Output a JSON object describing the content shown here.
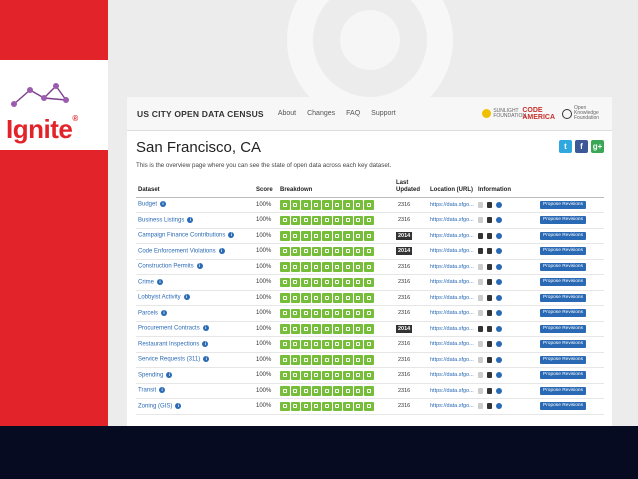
{
  "slide": {
    "logo_text": "Ignite"
  },
  "census": {
    "brand": "US CITY OPEN DATA CENSUS",
    "nav": [
      "About",
      "Changes",
      "FAQ",
      "Support"
    ],
    "partners": {
      "sunlight": "SUNLIGHT FOUNDATION",
      "code_for_america_top": "CODE",
      "code_for_america_bottom": "AMERICA",
      "okfn": "Open Knowledge Foundation"
    },
    "city": "San Francisco, CA",
    "intro": "This is the overview page where you can see the state of open data across each key dataset.",
    "columns": {
      "dataset": "Dataset",
      "score": "Score",
      "breakdown": "Breakdown",
      "last_updated": "Last Updated",
      "location": "Location (URL)",
      "information": "Information"
    },
    "propose_label": "Propose Revisions",
    "rows": [
      {
        "name": "Budget",
        "score": "100%",
        "updated": "2316",
        "updated_dark": false,
        "url": "https://data.sfgo..."
      },
      {
        "name": "Business Listings",
        "score": "100%",
        "updated": "2316",
        "updated_dark": false,
        "url": "https://data.sfgo..."
      },
      {
        "name": "Campaign Finance Contributions",
        "score": "100%",
        "updated": "2014",
        "updated_dark": true,
        "url": "https://data.sfgo..."
      },
      {
        "name": "Code Enforcement Violations",
        "score": "100%",
        "updated": "2014",
        "updated_dark": true,
        "url": "https://data.sfgo..."
      },
      {
        "name": "Construction Permits",
        "score": "100%",
        "updated": "2316",
        "updated_dark": false,
        "url": "https://data.sfgo..."
      },
      {
        "name": "Crime",
        "score": "100%",
        "updated": "2316",
        "updated_dark": false,
        "url": "https://data.sfgo..."
      },
      {
        "name": "Lobbyist Activity",
        "score": "100%",
        "updated": "2316",
        "updated_dark": false,
        "url": "https://data.sfgo..."
      },
      {
        "name": "Parcels",
        "score": "100%",
        "updated": "2316",
        "updated_dark": false,
        "url": "https://data.sfgo..."
      },
      {
        "name": "Procurement Contracts",
        "score": "100%",
        "updated": "2014",
        "updated_dark": true,
        "url": "https://data.sfgo..."
      },
      {
        "name": "Restaurant Inspections",
        "score": "100%",
        "updated": "2316",
        "updated_dark": false,
        "url": "https://data.sfgo..."
      },
      {
        "name": "Service Requests (311)",
        "score": "100%",
        "updated": "2316",
        "updated_dark": false,
        "url": "https://data.sfgo..."
      },
      {
        "name": "Spending",
        "score": "100%",
        "updated": "2316",
        "updated_dark": false,
        "url": "https://data.sfgo..."
      },
      {
        "name": "Transit",
        "score": "100%",
        "updated": "2316",
        "updated_dark": false,
        "url": "https://data.sfgo..."
      },
      {
        "name": "Zoning (GIS)",
        "score": "100%",
        "updated": "2316",
        "updated_dark": false,
        "url": "https://data.sfgo..."
      }
    ]
  },
  "colors": {
    "ignite_red": "#e2232a",
    "breakdown_green": "#76bd3a",
    "link_blue": "#2a6ab5",
    "bottom_bar": "#070b22"
  },
  "icons": {
    "breakdown": "check-square-icon",
    "information": [
      "document-icon",
      "document-icon",
      "info-icon"
    ],
    "social": [
      "twitter-icon",
      "facebook-icon",
      "google-plus-icon"
    ]
  }
}
